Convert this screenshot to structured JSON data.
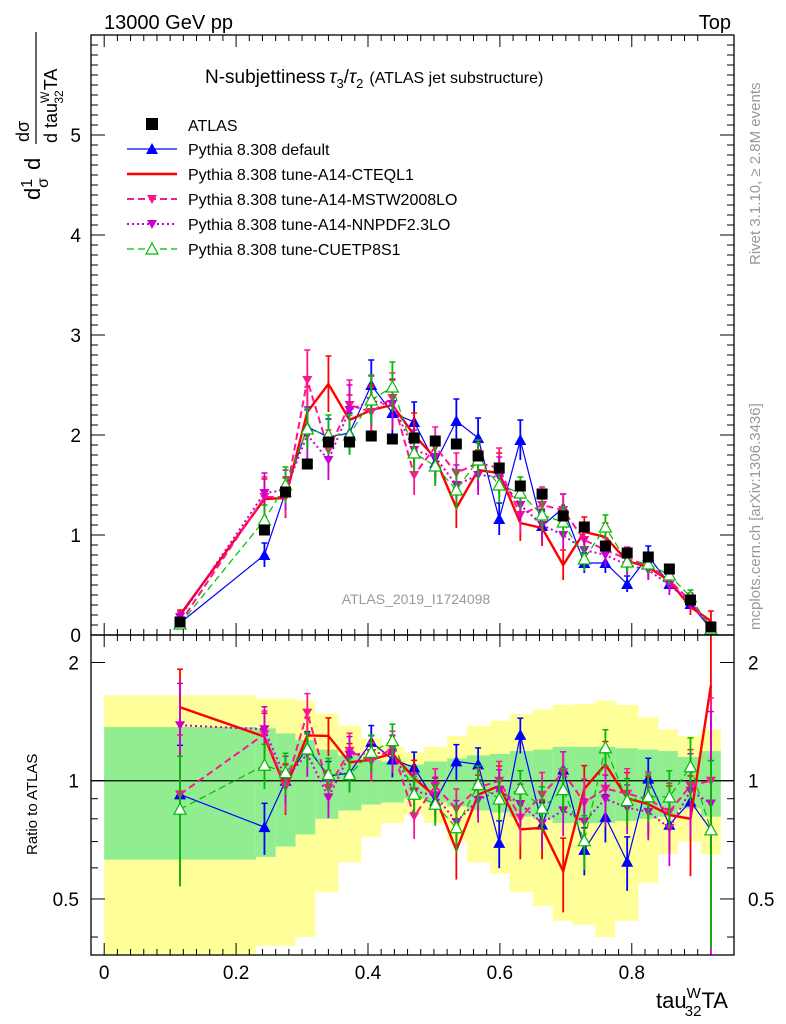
{
  "header": {
    "left": "13000 GeV pp",
    "right": "Top"
  },
  "side": {
    "rivet": "Rivet 3.1.10, ≥ 2.8M events",
    "mcplots": "mcplots.cern.ch [arXiv:1306.3436]"
  },
  "chart_data": {
    "type": "line",
    "title": {
      "main": "N-subjettiness",
      "tau3": "τ",
      "sub3": "3",
      "slash": "/",
      "tau2": "τ",
      "sub2": "2",
      "note": "(ATLAS jet substructure)"
    },
    "ylabel": {
      "d1": "d",
      "one": "1",
      "sigma": "σ",
      "d2": "d",
      "num": "dσ",
      "den_d": "d tau",
      "den_sup": "W",
      "den_sub": "32",
      "den_ta": "TA"
    },
    "xlabel": {
      "base": "tau",
      "sup": "W",
      "sub": "32",
      "suffix": "TA"
    },
    "ratio_ylabel": "Ratio to ATLAS",
    "watermark": "ATLAS_2019_I1724098",
    "xlim": [
      -0.02,
      0.955
    ],
    "ylim": [
      0,
      6
    ],
    "ratio_ylim": [
      0.36,
      2.35
    ],
    "x_ticks": [
      "0",
      "0.2",
      "0.4",
      "0.6",
      "0.8"
    ],
    "y_ticks": [
      "0",
      "1",
      "2",
      "3",
      "4",
      "5"
    ],
    "ratio_ticks": [
      "0.5",
      "1",
      "2"
    ],
    "data": {
      "name": "ATLAS",
      "x": [
        0.115,
        0.243,
        0.275,
        0.308,
        0.34,
        0.372,
        0.405,
        0.437,
        0.47,
        0.502,
        0.534,
        0.567,
        0.599,
        0.631,
        0.664,
        0.696,
        0.728,
        0.76,
        0.793,
        0.825,
        0.857,
        0.889,
        0.92
      ],
      "y": [
        0.13,
        1.05,
        1.43,
        1.71,
        1.93,
        1.93,
        1.99,
        1.96,
        1.97,
        1.94,
        1.91,
        1.79,
        1.67,
        1.49,
        1.41,
        1.19,
        1.08,
        0.89,
        0.82,
        0.78,
        0.66,
        0.35,
        0.08
      ],
      "band_edges": [
        0,
        0.23,
        0.26,
        0.29,
        0.32,
        0.355,
        0.39,
        0.42,
        0.455,
        0.485,
        0.52,
        0.55,
        0.585,
        0.615,
        0.65,
        0.68,
        0.71,
        0.745,
        0.775,
        0.81,
        0.84,
        0.87,
        0.905,
        0.935
      ],
      "band_stat": [
        0.37,
        0.36,
        0.32,
        0.27,
        0.2,
        0.16,
        0.13,
        0.12,
        0.1,
        0.12,
        0.14,
        0.16,
        0.17,
        0.19,
        0.2,
        0.22,
        0.22,
        0.22,
        0.21,
        0.2,
        0.19,
        0.15,
        0.19
      ],
      "band_tot": [
        0.65,
        0.62,
        0.62,
        0.6,
        0.48,
        0.38,
        0.28,
        0.22,
        0.18,
        0.22,
        0.3,
        0.38,
        0.42,
        0.48,
        0.52,
        0.56,
        0.57,
        0.6,
        0.56,
        0.45,
        0.35,
        0.3,
        0.35
      ]
    },
    "series": [
      {
        "name": "Pythia 8.308 default",
        "color": "#0000ff",
        "style": "solid",
        "marker": "triangle",
        "width": 1.2,
        "y": [
          0.12,
          0.8,
          1.43,
          2.08,
          1.98,
          2.02,
          2.5,
          2.22,
          2.13,
          1.72,
          2.14,
          1.97,
          1.16,
          1.95,
          1.09,
          1.27,
          0.72,
          0.72,
          0.51,
          0.79,
          0.51,
          0.31,
          0.06
        ],
        "err": [
          0.04,
          0.12,
          0.15,
          0.2,
          0.18,
          0.2,
          0.25,
          0.22,
          0.2,
          0.2,
          0.22,
          0.2,
          0.16,
          0.2,
          0.15,
          0.14,
          0.1,
          0.1,
          0.08,
          0.1,
          0.08,
          0.06,
          0.03
        ]
      },
      {
        "name": "Pythia 8.308 tune-A14-CTEQL1",
        "color": "#ff0000",
        "style": "solid",
        "marker": "none",
        "width": 2.4,
        "y": [
          0.2,
          1.36,
          1.37,
          2.23,
          2.51,
          2.15,
          2.25,
          2.3,
          2.0,
          1.77,
          1.27,
          1.65,
          1.62,
          1.12,
          1.07,
          0.7,
          1.03,
          0.98,
          0.74,
          0.68,
          0.54,
          0.28,
          0.14
        ],
        "err": [
          0.05,
          0.2,
          0.2,
          0.25,
          0.28,
          0.25,
          0.25,
          0.25,
          0.22,
          0.2,
          0.2,
          0.2,
          0.2,
          0.18,
          0.18,
          0.15,
          0.15,
          0.14,
          0.12,
          0.12,
          0.1,
          0.08,
          0.1
        ]
      },
      {
        "name": "Pythia 8.308 tune-A14-MSTW2008LO",
        "color": "#ff1493",
        "style": "dashed",
        "marker": "triangle-down",
        "width": 2.0,
        "y": [
          0.12,
          1.38,
          1.38,
          2.55,
          1.85,
          2.3,
          2.23,
          2.37,
          1.6,
          1.88,
          1.62,
          1.72,
          1.67,
          1.2,
          1.3,
          1.25,
          0.95,
          0.85,
          0.76,
          0.7,
          0.55,
          0.34,
          0.08
        ],
        "err": [
          0.05,
          0.2,
          0.2,
          0.3,
          0.2,
          0.25,
          0.25,
          0.25,
          0.2,
          0.2,
          0.2,
          0.2,
          0.2,
          0.18,
          0.18,
          0.16,
          0.14,
          0.12,
          0.12,
          0.12,
          0.1,
          0.08,
          0.05
        ]
      },
      {
        "name": "Pythia 8.308 tune-A14-NNPDF2.3LO",
        "color": "#cc00cc",
        "style": "dotted",
        "marker": "triangle-down",
        "width": 2.0,
        "y": [
          0.18,
          1.42,
          1.45,
          2.0,
          1.75,
          2.25,
          2.34,
          2.31,
          1.85,
          1.78,
          1.5,
          1.6,
          1.58,
          1.3,
          1.1,
          1.0,
          0.85,
          0.8,
          0.7,
          0.65,
          0.5,
          0.33,
          0.07
        ],
        "err": [
          0.05,
          0.2,
          0.2,
          0.25,
          0.2,
          0.25,
          0.25,
          0.25,
          0.2,
          0.2,
          0.2,
          0.2,
          0.2,
          0.16,
          0.16,
          0.14,
          0.12,
          0.12,
          0.1,
          0.1,
          0.1,
          0.08,
          0.05
        ]
      },
      {
        "name": "Pythia 8.308 tune-CUETP8S1",
        "color": "#00bb00",
        "style": "dashed",
        "marker": "triangle-open",
        "width": 1.2,
        "y": [
          0.11,
          1.15,
          1.5,
          2.06,
          2.0,
          2.0,
          2.35,
          2.48,
          1.82,
          1.69,
          1.45,
          1.75,
          1.5,
          1.42,
          1.2,
          1.13,
          0.76,
          1.08,
          0.73,
          0.71,
          0.6,
          0.38,
          0.06
        ],
        "err": [
          0.04,
          0.15,
          0.18,
          0.2,
          0.2,
          0.2,
          0.25,
          0.25,
          0.2,
          0.2,
          0.2,
          0.2,
          0.18,
          0.16,
          0.16,
          0.15,
          0.12,
          0.12,
          0.1,
          0.1,
          0.1,
          0.07,
          0.03
        ]
      }
    ],
    "colors": {
      "band_stat": "#90ee90",
      "band_tot": "#ffff99",
      "data": "#000000"
    }
  }
}
